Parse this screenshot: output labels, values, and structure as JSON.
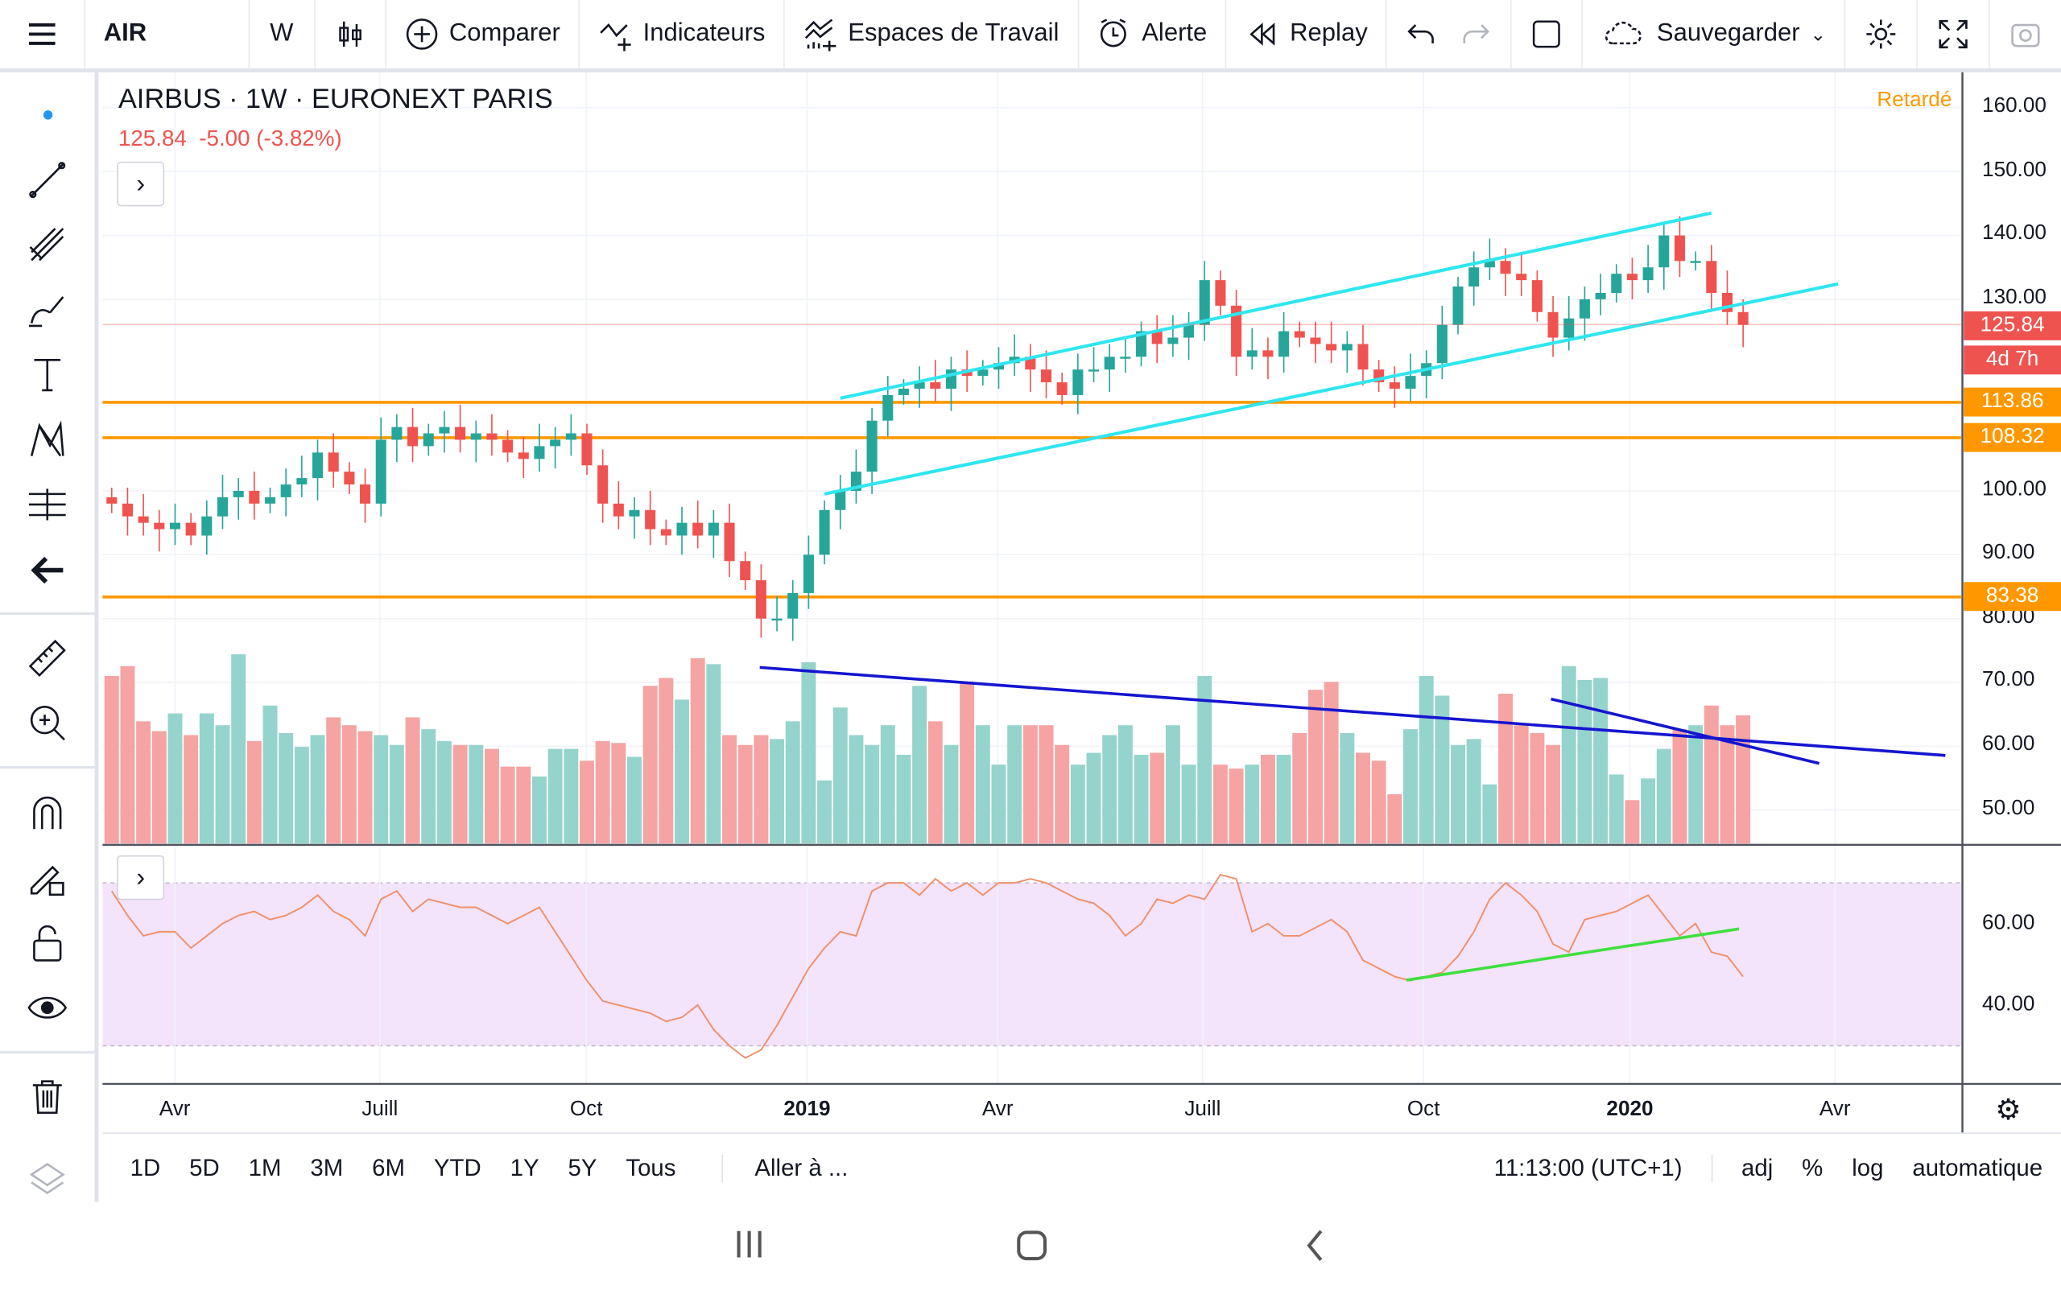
{
  "toolbar": {
    "symbol": "AIR",
    "interval": "W",
    "compare": "Comparer",
    "indicators": "Indicateurs",
    "workspaces": "Espaces de Travail",
    "alert": "Alerte",
    "replay": "Replay",
    "save": "Sauvegarder"
  },
  "legend": {
    "title": "AIRBUS · 1W · EURONEXT PARIS",
    "last": "125.84",
    "change": "-5.00 (-3.82%)",
    "delayed": "Retardé"
  },
  "price_axis": [
    "160.00",
    "150.00",
    "140.00",
    "130.00",
    "100.00",
    "90.00",
    "80.00",
    "70.00",
    "60.00",
    "50.00"
  ],
  "price_axis_values": [
    160,
    150,
    140,
    130,
    100,
    90,
    80,
    70,
    60,
    50
  ],
  "tags": [
    {
      "text": "125.84",
      "value": 125.84,
      "color": "#ef5350"
    },
    {
      "text": "4d 7h",
      "value": 120.5,
      "color": "#ef5350"
    },
    {
      "text": "113.86",
      "value": 113.86,
      "color": "#ff9800"
    },
    {
      "text": "108.32",
      "value": 108.32,
      "color": "#ff9800"
    },
    {
      "text": "83.38",
      "value": 83.38,
      "color": "#ff9800"
    }
  ],
  "rsi_axis": [
    "60.00",
    "40.00"
  ],
  "time_axis": [
    {
      "label": "Avr",
      "bold": false
    },
    {
      "label": "Juill",
      "bold": false
    },
    {
      "label": "Oct",
      "bold": false
    },
    {
      "label": "2019",
      "bold": true
    },
    {
      "label": "Avr",
      "bold": false
    },
    {
      "label": "Juill",
      "bold": false
    },
    {
      "label": "Oct",
      "bold": false
    },
    {
      "label": "2020",
      "bold": true
    },
    {
      "label": "Avr",
      "bold": false
    }
  ],
  "bottom": {
    "ranges": [
      "1D",
      "5D",
      "1M",
      "3M",
      "6M",
      "YTD",
      "1Y",
      "5Y",
      "Tous"
    ],
    "goto": "Aller à ...",
    "time": "11:13:00 (UTC+1)",
    "adj": "adj",
    "pct": "%",
    "log": "log",
    "auto": "automatique"
  },
  "colors": {
    "up": "#26a69a",
    "down": "#ef5350",
    "hline": "#ff9800",
    "channel": "#2ee6f0",
    "vol_trend": "#1515d0",
    "rsi_trend": "#3ee03e",
    "rsi_line": "#f0906a",
    "rsi_band": "#f3e3fb"
  },
  "chart_data": {
    "type": "candlestick",
    "interval": "1W",
    "hlines": [
      113.86,
      108.32,
      83.38
    ],
    "closes": [
      98,
      96,
      95,
      94,
      95,
      93,
      96,
      99,
      100,
      98,
      99,
      101,
      102,
      106,
      103,
      101,
      98,
      108,
      110,
      107,
      109,
      110,
      108,
      109,
      108,
      106,
      105,
      107,
      108,
      109,
      104,
      98,
      96,
      97,
      94,
      93,
      95,
      93,
      95,
      89,
      86,
      80,
      80,
      84,
      90,
      97,
      100,
      103,
      111,
      115,
      116,
      117,
      116,
      119,
      118,
      119,
      120,
      121,
      119,
      117,
      115,
      119,
      119,
      121,
      121,
      125,
      123,
      124,
      126,
      133,
      129,
      121,
      122,
      121,
      125,
      124,
      123,
      122,
      123,
      119,
      117,
      116,
      118,
      120,
      126,
      132,
      135,
      136,
      134,
      133,
      128,
      124,
      127,
      130,
      131,
      134,
      133,
      135,
      140,
      136,
      136,
      131,
      128,
      126
    ],
    "volume": [
      85,
      90,
      62,
      57,
      66,
      55,
      66,
      60,
      96,
      52,
      70,
      56,
      49,
      55,
      64,
      60,
      57,
      55,
      50,
      64,
      58,
      52,
      50,
      50,
      48,
      39,
      39,
      34,
      48,
      48,
      42,
      52,
      51,
      44,
      80,
      84,
      73,
      94,
      91,
      55,
      50,
      55,
      53,
      62,
      92,
      32,
      69,
      55,
      50,
      60,
      45,
      80,
      62,
      50,
      82,
      60,
      40,
      60,
      60,
      60,
      50,
      40,
      46,
      55,
      60,
      45,
      46,
      60,
      40,
      85,
      40,
      38,
      40,
      45,
      45,
      56,
      78,
      82,
      56,
      46,
      42,
      25,
      58,
      85,
      75,
      50,
      53,
      30,
      76,
      60,
      56,
      50,
      90,
      83,
      84,
      35,
      22,
      33,
      48,
      58,
      60,
      70,
      60,
      65
    ],
    "rsi": [
      68,
      62,
      57,
      58,
      58,
      54,
      57,
      60,
      62,
      63,
      61,
      62,
      64,
      67,
      63,
      61,
      57,
      66,
      68,
      63,
      66,
      65,
      64,
      64,
      62,
      60,
      62,
      64,
      58,
      52,
      46,
      41,
      40,
      39,
      38,
      36,
      37,
      40,
      34,
      30,
      27,
      29,
      35,
      42,
      49,
      54,
      58,
      57,
      68,
      70,
      70,
      67,
      71,
      68,
      70,
      67,
      70,
      70,
      71,
      70,
      68,
      66,
      65,
      62,
      57,
      60,
      66,
      65,
      67,
      66,
      72,
      71,
      58,
      60,
      57,
      57,
      59,
      61,
      58,
      51,
      49,
      47,
      46,
      47,
      48,
      52,
      58,
      66,
      70,
      67,
      63,
      55,
      53,
      61,
      62,
      63,
      65,
      67,
      62,
      57,
      60,
      53,
      52,
      47
    ],
    "channel": [
      {
        "from": [
          46,
          114.5
        ],
        "to": [
          101,
          143.5
        ]
      },
      {
        "from": [
          45,
          99.5
        ],
        "to": [
          109,
          132.4
        ]
      }
    ],
    "rsi_levels": [
      70,
      30
    ]
  }
}
